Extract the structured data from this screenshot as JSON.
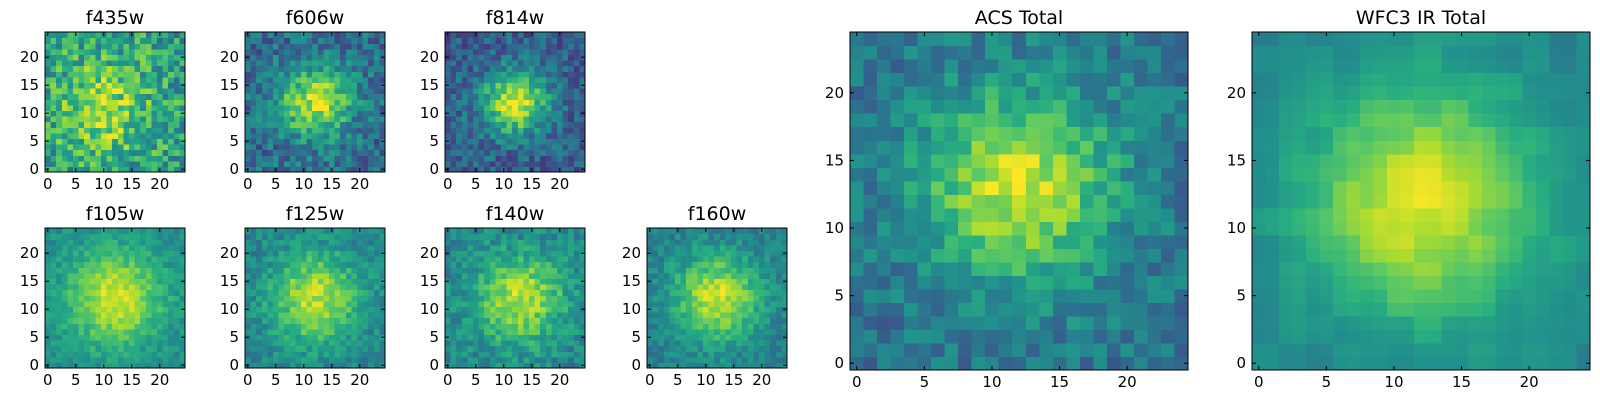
{
  "colormap": "viridis",
  "colormap_stops": [
    "#440154",
    "#472d7b",
    "#3b528b",
    "#2c728e",
    "#21918c",
    "#28ae80",
    "#5ec962",
    "#addc30",
    "#fde725"
  ],
  "chart_data": [
    {
      "type": "heatmap",
      "title": "f435w",
      "grid_size": 25,
      "xlim": [
        0,
        24
      ],
      "ylim": [
        0,
        24
      ],
      "xticks": [
        "0",
        "5",
        "10",
        "15",
        "20"
      ],
      "yticks": [
        "0",
        "5",
        "10",
        "15",
        "20"
      ],
      "center": [
        10,
        11
      ],
      "peak_width": 6,
      "profile_amplitude": 0.3,
      "base_level": 0.55,
      "noise_level": 0.45,
      "noise_block": 1
    },
    {
      "type": "heatmap",
      "title": "f606w",
      "grid_size": 25,
      "xlim": [
        0,
        24
      ],
      "ylim": [
        0,
        24
      ],
      "xticks": [
        "0",
        "5",
        "10",
        "15",
        "20"
      ],
      "yticks": [
        "0",
        "5",
        "10",
        "15",
        "20"
      ],
      "center": [
        12,
        12
      ],
      "peak_width": 4.5,
      "profile_amplitude": 0.55,
      "base_level": 0.35,
      "noise_level": 0.35,
      "noise_block": 1
    },
    {
      "type": "heatmap",
      "title": "f814w",
      "grid_size": 25,
      "xlim": [
        0,
        24
      ],
      "ylim": [
        0,
        24
      ],
      "xticks": [
        "0",
        "5",
        "10",
        "15",
        "20"
      ],
      "yticks": [
        "0",
        "5",
        "10",
        "15",
        "20"
      ],
      "center": [
        12,
        12
      ],
      "peak_width": 4,
      "profile_amplitude": 0.65,
      "base_level": 0.3,
      "noise_level": 0.3,
      "noise_block": 1
    },
    {
      "type": "heatmap",
      "title": "f105w",
      "grid_size": 25,
      "xlim": [
        0,
        24
      ],
      "ylim": [
        0,
        24
      ],
      "xticks": [
        "0",
        "5",
        "10",
        "15",
        "20"
      ],
      "yticks": [
        "0",
        "5",
        "10",
        "15",
        "20"
      ],
      "center": [
        12,
        12
      ],
      "peak_width": 6,
      "profile_amplitude": 0.45,
      "base_level": 0.48,
      "noise_level": 0.18,
      "noise_block": 1
    },
    {
      "type": "heatmap",
      "title": "f125w",
      "grid_size": 25,
      "xlim": [
        0,
        24
      ],
      "ylim": [
        0,
        24
      ],
      "xticks": [
        "0",
        "5",
        "10",
        "15",
        "20"
      ],
      "yticks": [
        "0",
        "5",
        "10",
        "15",
        "20"
      ],
      "center": [
        12,
        12
      ],
      "peak_width": 5.5,
      "profile_amplitude": 0.45,
      "base_level": 0.45,
      "noise_level": 0.22,
      "noise_block": 1
    },
    {
      "type": "heatmap",
      "title": "f140w",
      "grid_size": 25,
      "xlim": [
        0,
        24
      ],
      "ylim": [
        0,
        24
      ],
      "xticks": [
        "0",
        "5",
        "10",
        "15",
        "20"
      ],
      "yticks": [
        "0",
        "5",
        "10",
        "15",
        "20"
      ],
      "center": [
        13,
        12
      ],
      "peak_width": 5.5,
      "profile_amplitude": 0.45,
      "base_level": 0.45,
      "noise_level": 0.25,
      "noise_block": 1
    },
    {
      "type": "heatmap",
      "title": "f160w",
      "grid_size": 25,
      "xlim": [
        0,
        24
      ],
      "ylim": [
        0,
        24
      ],
      "xticks": [
        "0",
        "5",
        "10",
        "15",
        "20"
      ],
      "yticks": [
        "0",
        "5",
        "10",
        "15",
        "20"
      ],
      "center": [
        12,
        12
      ],
      "peak_width": 5.5,
      "profile_amplitude": 0.5,
      "base_level": 0.42,
      "noise_level": 0.2,
      "noise_block": 1
    },
    {
      "type": "heatmap",
      "title": "ACS Total",
      "grid_size": 25,
      "xlim": [
        0,
        24
      ],
      "ylim": [
        0,
        24
      ],
      "xticks": [
        "0",
        "5",
        "10",
        "15",
        "20"
      ],
      "yticks": [
        "0",
        "5",
        "10",
        "15",
        "20"
      ],
      "center": [
        12,
        13
      ],
      "peak_width": 5,
      "profile_amplitude": 0.55,
      "base_level": 0.38,
      "noise_level": 0.25,
      "noise_block": 1
    },
    {
      "type": "heatmap",
      "title": "WFC3 IR Total",
      "grid_size": 25,
      "xlim": [
        0,
        24
      ],
      "ylim": [
        0,
        24
      ],
      "xticks": [
        "0",
        "5",
        "10",
        "15",
        "20"
      ],
      "yticks": [
        "0",
        "5",
        "10",
        "15",
        "20"
      ],
      "center": [
        12,
        12
      ],
      "peak_width": 6,
      "profile_amplitude": 0.5,
      "base_level": 0.45,
      "noise_level": 0.1,
      "noise_block": 2
    }
  ]
}
